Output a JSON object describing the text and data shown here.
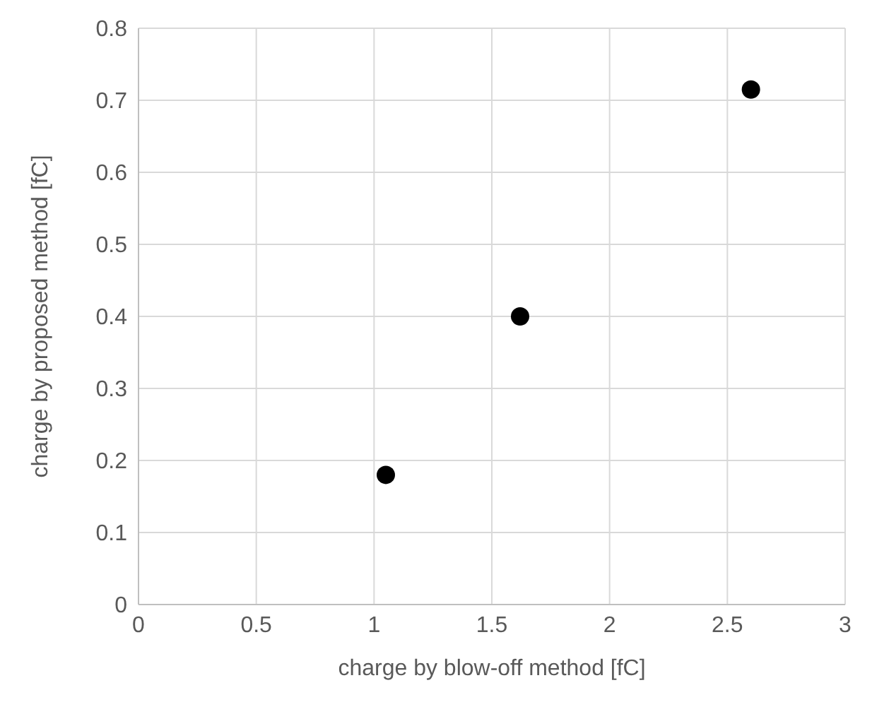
{
  "chart_data": {
    "type": "scatter",
    "xlabel": "charge by blow-off method [fC]",
    "ylabel": "charge by proposed method [fC]",
    "x": [
      1.05,
      1.62,
      2.6
    ],
    "series": [
      {
        "color": "#000000",
        "values": [
          0.18,
          0.4,
          0.715
        ]
      }
    ],
    "xlim": [
      0,
      3
    ],
    "xticks": [
      0,
      0.5,
      1,
      1.5,
      2,
      2.5,
      3
    ],
    "ylim": [
      0,
      0.8
    ],
    "yticks": [
      0,
      0.1,
      0.2,
      0.3,
      0.4,
      0.5,
      0.6,
      0.7,
      0.8
    ],
    "grid": true,
    "marker": "circle",
    "legend": false
  }
}
